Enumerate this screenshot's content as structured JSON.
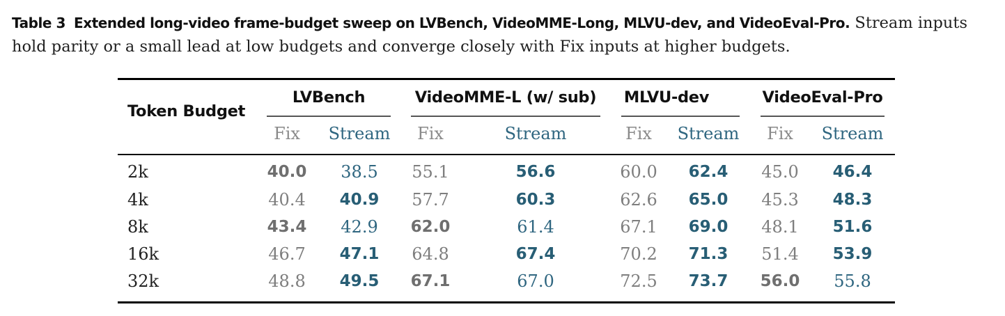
{
  "caption": {
    "label": "Table 3",
    "title": "Extended long-video frame-budget sweep on LVBench, VideoMME-Long, MLVU-dev, and VideoEval-Pro.",
    "text": "Stream inputs hold parity or a small lead at low budgets and converge closely with Fix inputs at higher budgets."
  },
  "table": {
    "row_header": "Token Budget",
    "benchmarks": [
      {
        "name": "LVBench",
        "fix_label": "Fix",
        "stream_label": "Stream"
      },
      {
        "name": "VideoMME-L (w/ sub)",
        "fix_label": "Fix",
        "stream_label": "Stream"
      },
      {
        "name": "MLVU-dev",
        "fix_label": "Fix",
        "stream_label": "Stream"
      },
      {
        "name": "VideoEval-Pro",
        "fix_label": "Fix",
        "stream_label": "Stream"
      }
    ],
    "rows": [
      {
        "budget": "2k",
        "cells": [
          {
            "v": "40.0",
            "bold": true
          },
          {
            "v": "38.5",
            "bold": false
          },
          {
            "v": "55.1",
            "bold": false
          },
          {
            "v": "56.6",
            "bold": true
          },
          {
            "v": "60.0",
            "bold": false
          },
          {
            "v": "62.4",
            "bold": true
          },
          {
            "v": "45.0",
            "bold": false
          },
          {
            "v": "46.4",
            "bold": true
          }
        ]
      },
      {
        "budget": "4k",
        "cells": [
          {
            "v": "40.4",
            "bold": false
          },
          {
            "v": "40.9",
            "bold": true
          },
          {
            "v": "57.7",
            "bold": false
          },
          {
            "v": "60.3",
            "bold": true
          },
          {
            "v": "62.6",
            "bold": false
          },
          {
            "v": "65.0",
            "bold": true
          },
          {
            "v": "45.3",
            "bold": false
          },
          {
            "v": "48.3",
            "bold": true
          }
        ]
      },
      {
        "budget": "8k",
        "cells": [
          {
            "v": "43.4",
            "bold": true
          },
          {
            "v": "42.9",
            "bold": false
          },
          {
            "v": "62.0",
            "bold": true
          },
          {
            "v": "61.4",
            "bold": false
          },
          {
            "v": "67.1",
            "bold": false
          },
          {
            "v": "69.0",
            "bold": true
          },
          {
            "v": "48.1",
            "bold": false
          },
          {
            "v": "51.6",
            "bold": true
          }
        ]
      },
      {
        "budget": "16k",
        "cells": [
          {
            "v": "46.7",
            "bold": false
          },
          {
            "v": "47.1",
            "bold": true
          },
          {
            "v": "64.8",
            "bold": false
          },
          {
            "v": "67.4",
            "bold": true
          },
          {
            "v": "70.2",
            "bold": false
          },
          {
            "v": "71.3",
            "bold": true
          },
          {
            "v": "51.4",
            "bold": false
          },
          {
            "v": "53.9",
            "bold": true
          }
        ]
      },
      {
        "budget": "32k",
        "cells": [
          {
            "v": "48.8",
            "bold": false
          },
          {
            "v": "49.5",
            "bold": true
          },
          {
            "v": "67.1",
            "bold": true
          },
          {
            "v": "67.0",
            "bold": false
          },
          {
            "v": "72.5",
            "bold": false
          },
          {
            "v": "73.7",
            "bold": true
          },
          {
            "v": "56.0",
            "bold": true
          },
          {
            "v": "55.8",
            "bold": false
          }
        ]
      }
    ]
  }
}
